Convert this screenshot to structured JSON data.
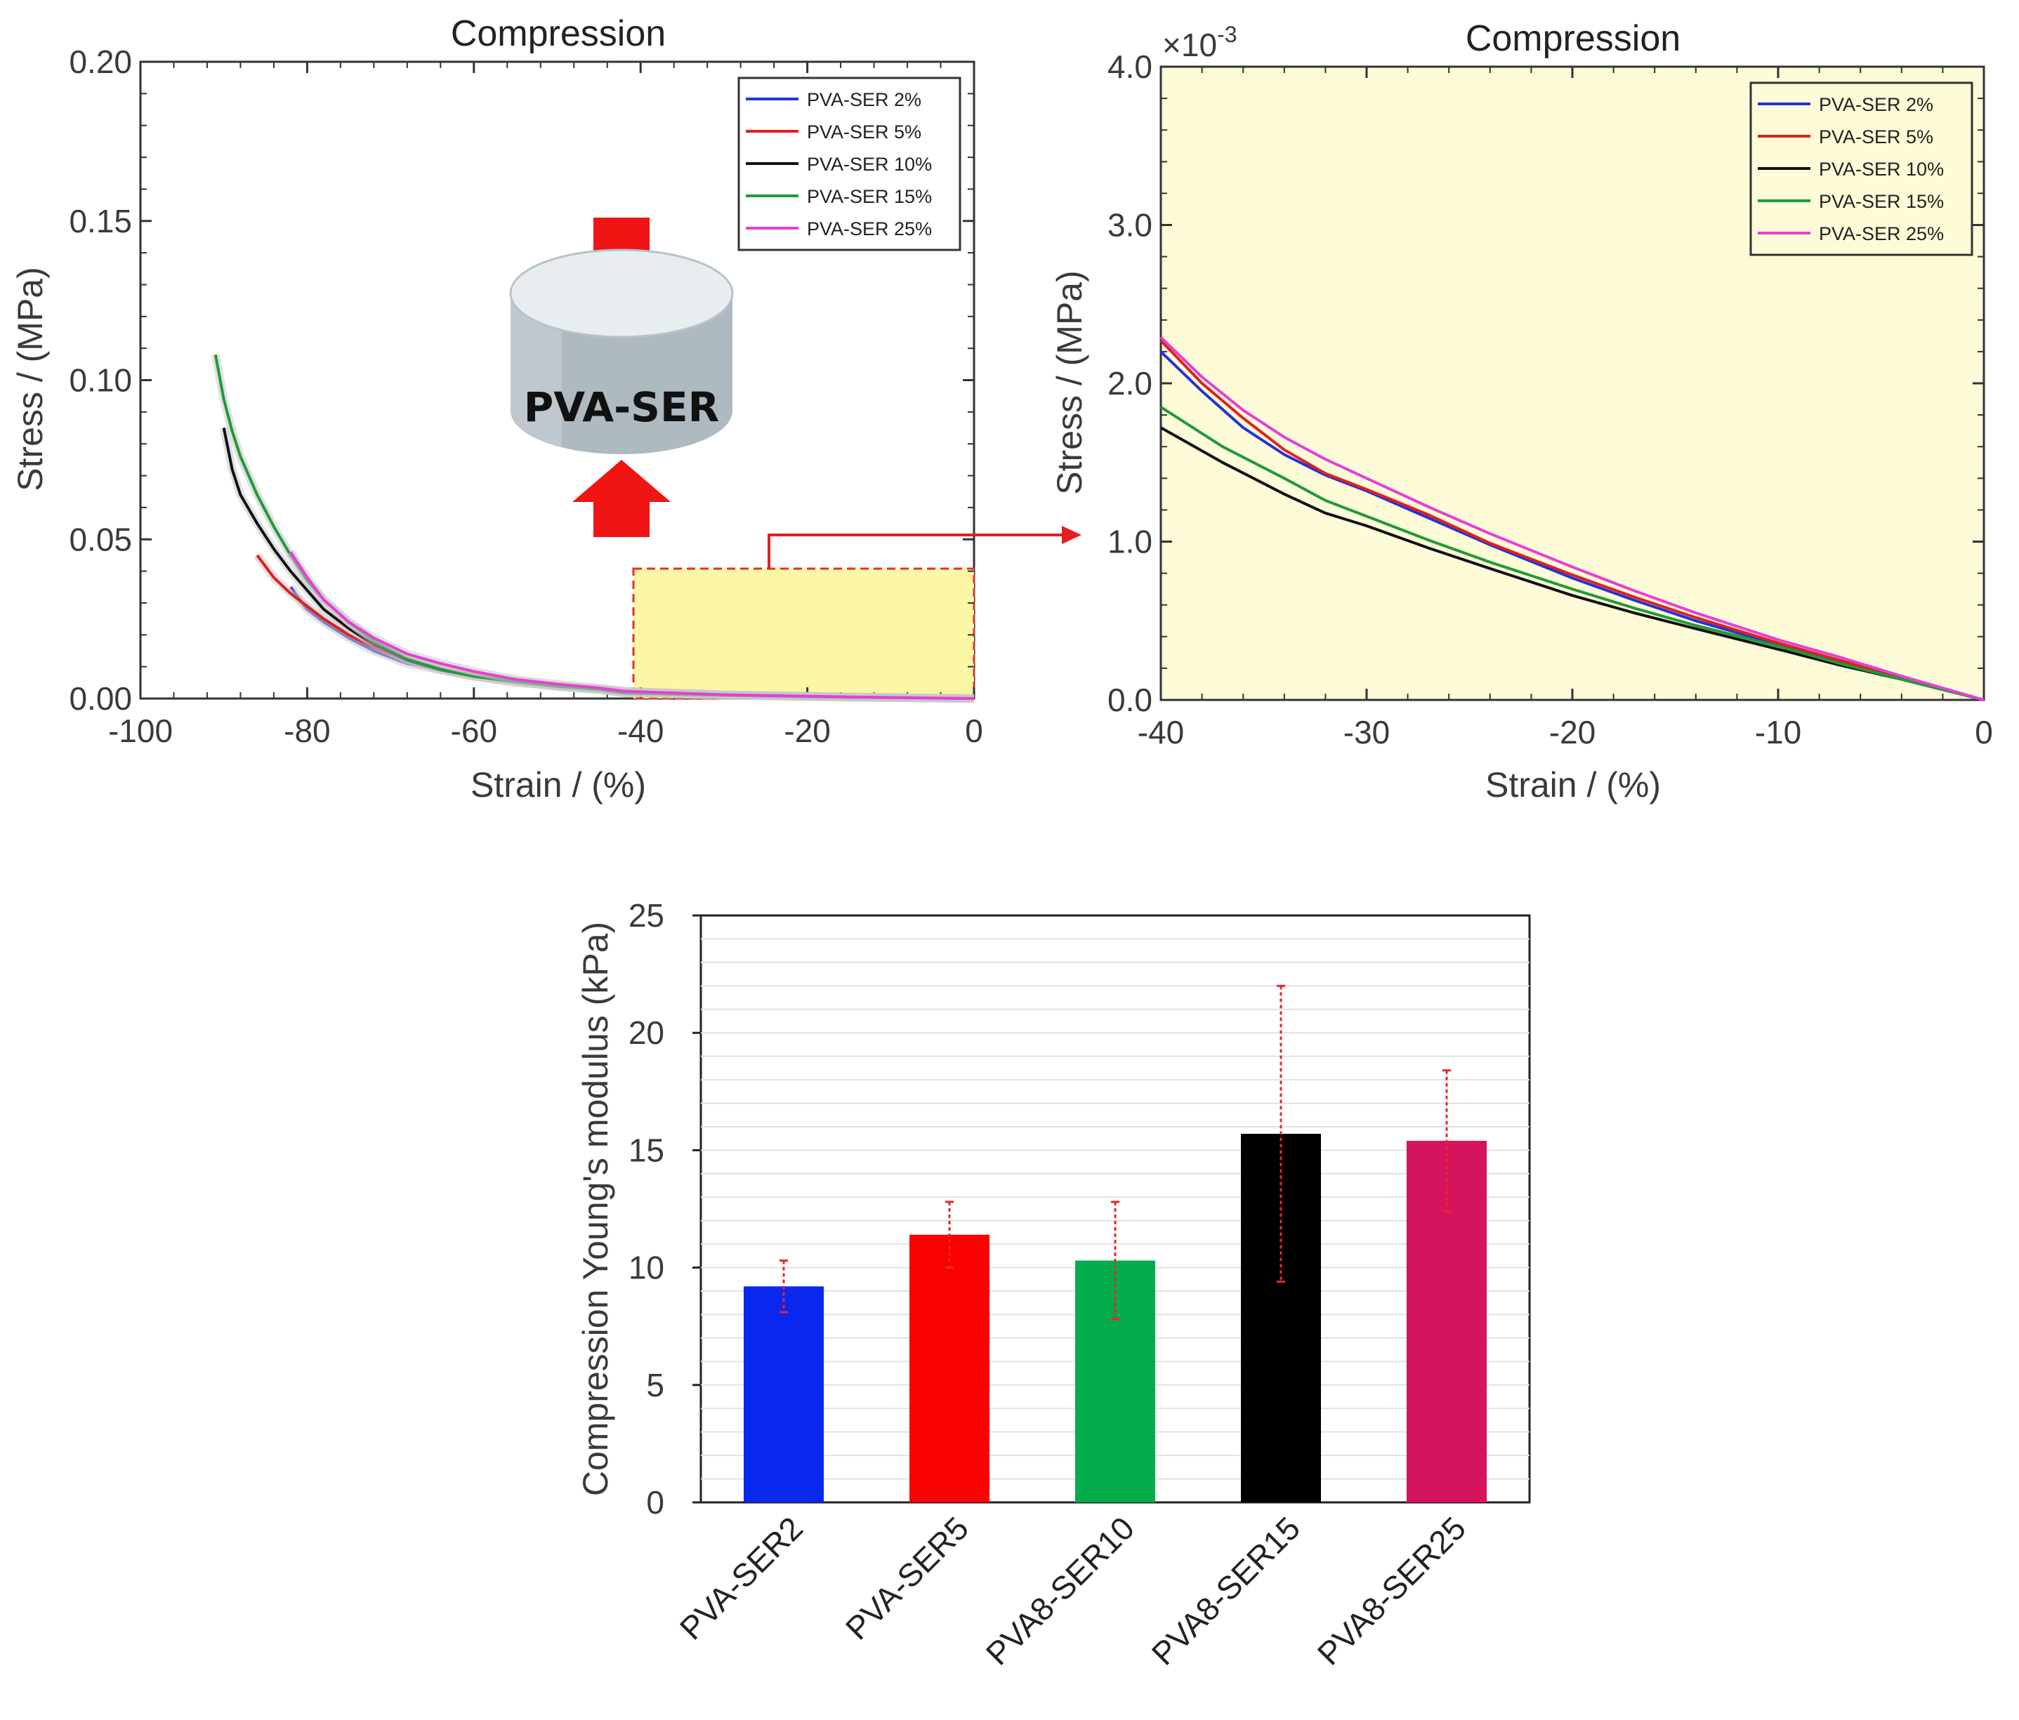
{
  "chart_data": [
    {
      "id": "chart-a",
      "type": "line",
      "title": "Compression",
      "xlabel": "Strain / (%)",
      "ylabel": "Stress / (MPa)",
      "xlim": [
        -100,
        0
      ],
      "ylim": [
        0,
        0.2
      ],
      "xticks": [
        "-100",
        "-80",
        "-60",
        "-40",
        "-20",
        "0"
      ],
      "yticks": [
        "0.00",
        "0.05",
        "0.10",
        "0.15",
        "0.20"
      ],
      "legend_position": "top-right",
      "sample_label": "PVA-SER",
      "series": [
        {
          "name": "PVA-SER 2%",
          "color": "#2433d8",
          "x": [
            -82,
            -80,
            -78,
            -75,
            -72,
            -68,
            -64,
            -60,
            -55,
            -50,
            -45,
            -42,
            -30,
            -15,
            0
          ],
          "y": [
            0.035,
            0.028,
            0.024,
            0.019,
            0.015,
            0.011,
            0.009,
            0.007,
            0.005,
            0.004,
            0.003,
            0.0022,
            0.0012,
            0.0005,
            0.0
          ]
        },
        {
          "name": "PVA-SER 5%",
          "color": "#e0201c",
          "x": [
            -86,
            -84,
            -82,
            -80,
            -78,
            -75,
            -72,
            -68,
            -64,
            -60,
            -55,
            -50,
            -45,
            -42,
            -30,
            -15,
            0
          ],
          "y": [
            0.045,
            0.038,
            0.033,
            0.029,
            0.025,
            0.02,
            0.016,
            0.012,
            0.0095,
            0.0075,
            0.0055,
            0.004,
            0.003,
            0.0023,
            0.0012,
            0.0005,
            0.0
          ]
        },
        {
          "name": "PVA-SER 10%",
          "color": "#111111",
          "x": [
            -90,
            -89,
            -88,
            -86,
            -84,
            -82,
            -80,
            -78,
            -75,
            -72,
            -68,
            -64,
            -60,
            -55,
            -50,
            -45,
            -42,
            -30,
            -15,
            0
          ],
          "y": [
            0.085,
            0.072,
            0.064,
            0.055,
            0.047,
            0.04,
            0.034,
            0.028,
            0.022,
            0.017,
            0.012,
            0.009,
            0.007,
            0.0053,
            0.0038,
            0.0028,
            0.0017,
            0.001,
            0.0004,
            0.0
          ]
        },
        {
          "name": "PVA-SER 15%",
          "color": "#1f9a38",
          "x": [
            -91,
            -90,
            -89,
            -88,
            -86,
            -84,
            -82,
            -80,
            -78,
            -75,
            -72,
            -68,
            -64,
            -60,
            -55,
            -50,
            -45,
            -42,
            -30,
            -15,
            0
          ],
          "y": [
            0.108,
            0.094,
            0.084,
            0.076,
            0.064,
            0.054,
            0.045,
            0.037,
            0.031,
            0.024,
            0.018,
            0.0125,
            0.0092,
            0.007,
            0.0053,
            0.0038,
            0.0028,
            0.0018,
            0.0011,
            0.0004,
            0.0
          ]
        },
        {
          "name": "PVA-SER 25%",
          "color": "#e63fd6",
          "x": [
            -82,
            -80,
            -78,
            -75,
            -72,
            -68,
            -64,
            -60,
            -55,
            -50,
            -45,
            -42,
            -30,
            -15,
            0
          ],
          "y": [
            0.046,
            0.038,
            0.031,
            0.024,
            0.019,
            0.014,
            0.011,
            0.0085,
            0.006,
            0.0045,
            0.0033,
            0.0023,
            0.0012,
            0.0005,
            0.0
          ]
        }
      ]
    },
    {
      "id": "chart-b",
      "type": "line",
      "title": "Compression",
      "xlabel": "Strain / (%)",
      "ylabel": "Stress / (MPa)",
      "exponent_label": "×10",
      "exponent_power": "-3",
      "xlim": [
        -40,
        0
      ],
      "ylim": [
        0,
        4
      ],
      "xticks": [
        "-40",
        "-30",
        "-20",
        "-10",
        "0"
      ],
      "yticks": [
        "0.0",
        "1.0",
        "2.0",
        "3.0",
        "4.0"
      ],
      "legend_position": "top-right",
      "series": [
        {
          "name": "PVA-SER 2%",
          "color": "#2433d8",
          "x": [
            -40,
            -38,
            -36,
            -34,
            -32,
            -30,
            -27,
            -24,
            -20,
            -17,
            -14,
            -10,
            -7,
            -4,
            0
          ],
          "y": [
            2.2,
            1.95,
            1.72,
            1.55,
            1.42,
            1.32,
            1.15,
            0.98,
            0.77,
            0.63,
            0.5,
            0.35,
            0.24,
            0.14,
            0.0
          ]
        },
        {
          "name": "PVA-SER 5%",
          "color": "#e0201c",
          "x": [
            -40,
            -38,
            -36,
            -34,
            -32,
            -30,
            -27,
            -24,
            -20,
            -17,
            -14,
            -10,
            -7,
            -4,
            0
          ],
          "y": [
            2.27,
            2.0,
            1.78,
            1.58,
            1.43,
            1.33,
            1.17,
            0.99,
            0.79,
            0.65,
            0.52,
            0.36,
            0.25,
            0.14,
            0.0
          ]
        },
        {
          "name": "PVA-SER 10%",
          "color": "#111111",
          "x": [
            -40,
            -37,
            -34,
            -32,
            -30,
            -27,
            -24,
            -20,
            -17,
            -14,
            -10,
            -7,
            -4,
            0
          ],
          "y": [
            1.72,
            1.5,
            1.3,
            1.18,
            1.1,
            0.96,
            0.83,
            0.66,
            0.55,
            0.45,
            0.32,
            0.22,
            0.13,
            0.0
          ]
        },
        {
          "name": "PVA-SER 15%",
          "color": "#1f9a38",
          "x": [
            -40,
            -37,
            -34,
            -32,
            -30,
            -27,
            -24,
            -20,
            -17,
            -14,
            -10,
            -7,
            -4,
            0
          ],
          "y": [
            1.85,
            1.6,
            1.4,
            1.26,
            1.16,
            1.01,
            0.87,
            0.7,
            0.58,
            0.47,
            0.34,
            0.23,
            0.13,
            0.0
          ]
        },
        {
          "name": "PVA-SER 25%",
          "color": "#e63fd6",
          "x": [
            -40,
            -38,
            -36,
            -34,
            -32,
            -30,
            -27,
            -24,
            -20,
            -17,
            -14,
            -10,
            -7,
            -4,
            0
          ],
          "y": [
            2.29,
            2.04,
            1.83,
            1.66,
            1.52,
            1.4,
            1.22,
            1.05,
            0.84,
            0.69,
            0.55,
            0.38,
            0.27,
            0.15,
            0.0
          ]
        }
      ]
    },
    {
      "id": "chart-c",
      "type": "bar",
      "title": "",
      "xlabel": "",
      "ylabel": "Compression Young's modulus (kPa)",
      "ylim": [
        0,
        25
      ],
      "yticks": [
        "0",
        "5",
        "10",
        "15",
        "20",
        "25"
      ],
      "categories": [
        "PVA-SER2",
        "PVA-SER5",
        "PVA8-SER10",
        "PVA8-SER15",
        "PVA8-SER25"
      ],
      "values": [
        9.2,
        11.4,
        10.3,
        15.7,
        15.4
      ],
      "errors": [
        1.1,
        1.4,
        2.5,
        6.3,
        3.0
      ],
      "colors": [
        "#0a27ee",
        "#fa0200",
        "#05ac4c",
        "#000000",
        "#d5145d"
      ],
      "error_color": "#e8272a"
    }
  ]
}
